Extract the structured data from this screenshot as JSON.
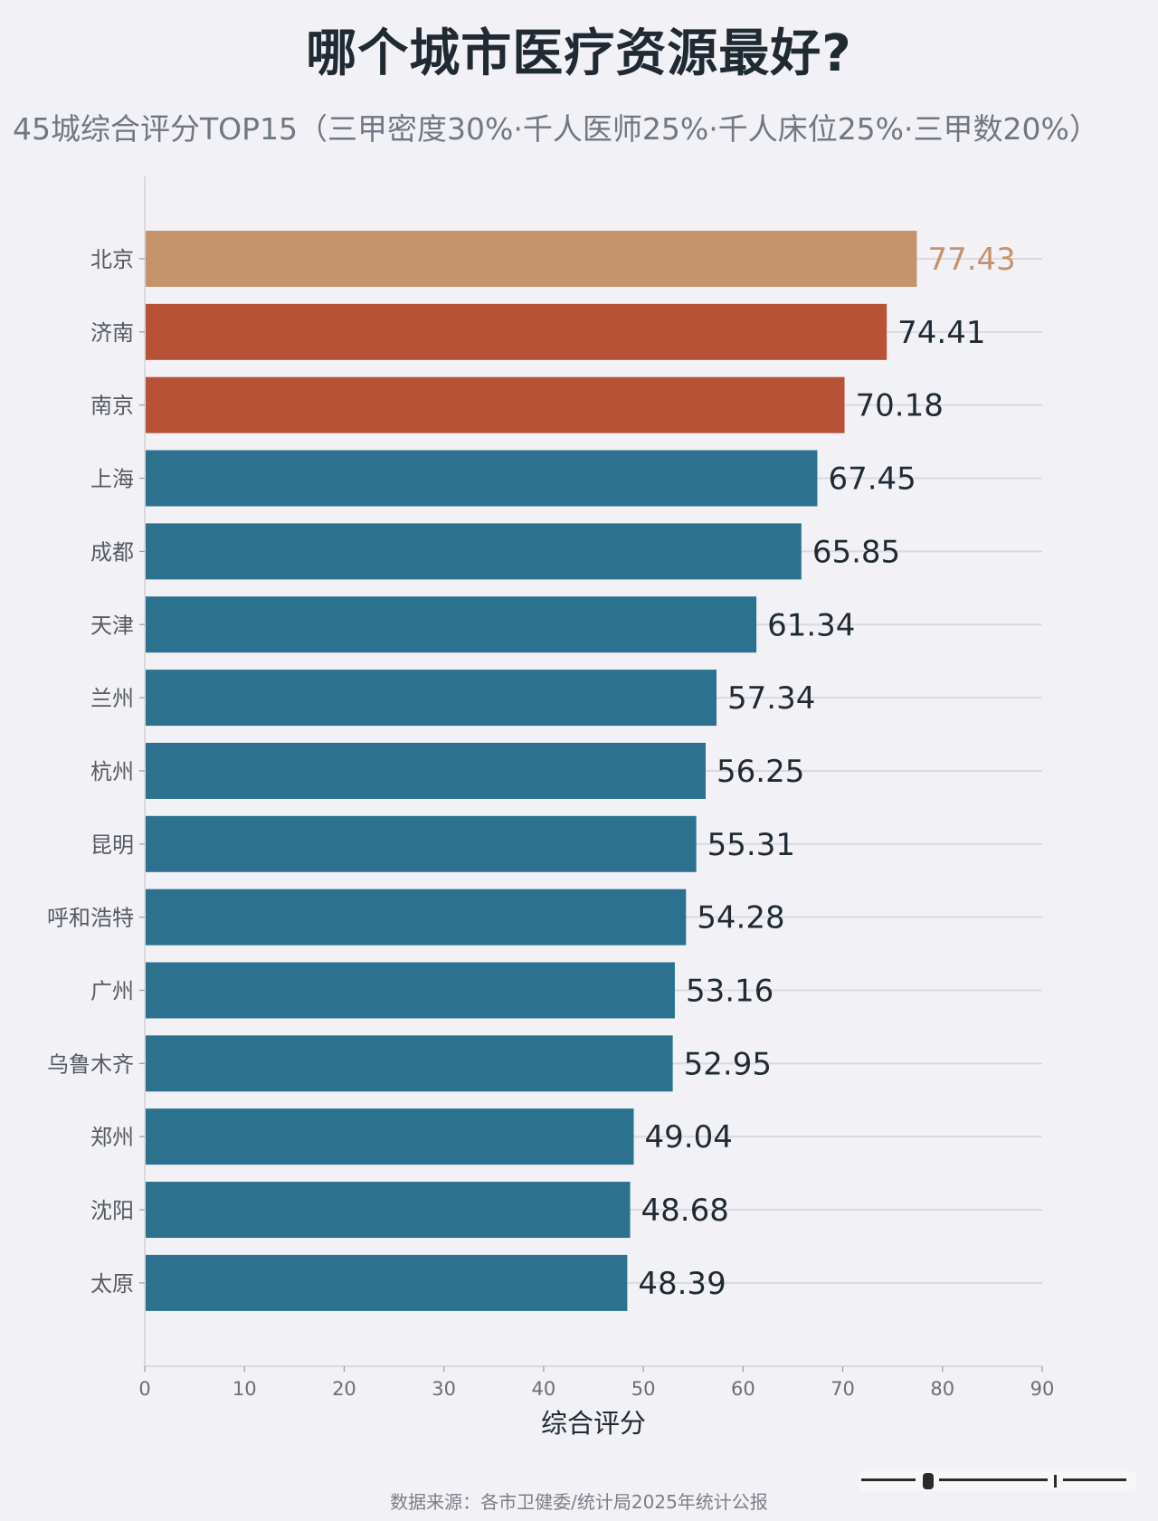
{
  "title": "哪个城市医疗资源最好?",
  "subtitle": "45城综合评分TOP15（三甲密度30%·千人医师25%·千人床位25%·三甲数20%）",
  "source": "数据来源：各市卫健委/统计局2025年统计公报",
  "colors": {
    "background": "#f2f1f6",
    "first": "#c4936a",
    "second_third": "#b85236",
    "others": "#2c728e",
    "grid": "#d9d9de"
  },
  "chart_data": {
    "type": "bar",
    "orientation": "horizontal",
    "categories": [
      "北京",
      "济南",
      "南京",
      "上海",
      "成都",
      "天津",
      "兰州",
      "杭州",
      "昆明",
      "呼和浩特",
      "广州",
      "乌鲁木齐",
      "郑州",
      "沈阳",
      "太原"
    ],
    "values": [
      77.43,
      74.41,
      70.18,
      67.45,
      65.85,
      61.34,
      57.34,
      56.25,
      55.31,
      54.28,
      53.16,
      52.95,
      49.04,
      48.68,
      48.39
    ],
    "value_labels": [
      "77.43",
      "74.41",
      "70.18",
      "67.45",
      "65.85",
      "61.34",
      "57.34",
      "56.25",
      "55.31",
      "54.28",
      "53.16",
      "52.95",
      "49.04",
      "48.68",
      "48.39"
    ],
    "xlabel": "综合评分",
    "ylabel": "",
    "xlim": [
      0,
      90
    ],
    "xticks": [
      0,
      10,
      20,
      30,
      40,
      50,
      60,
      70,
      80,
      90
    ],
    "grid": true
  }
}
